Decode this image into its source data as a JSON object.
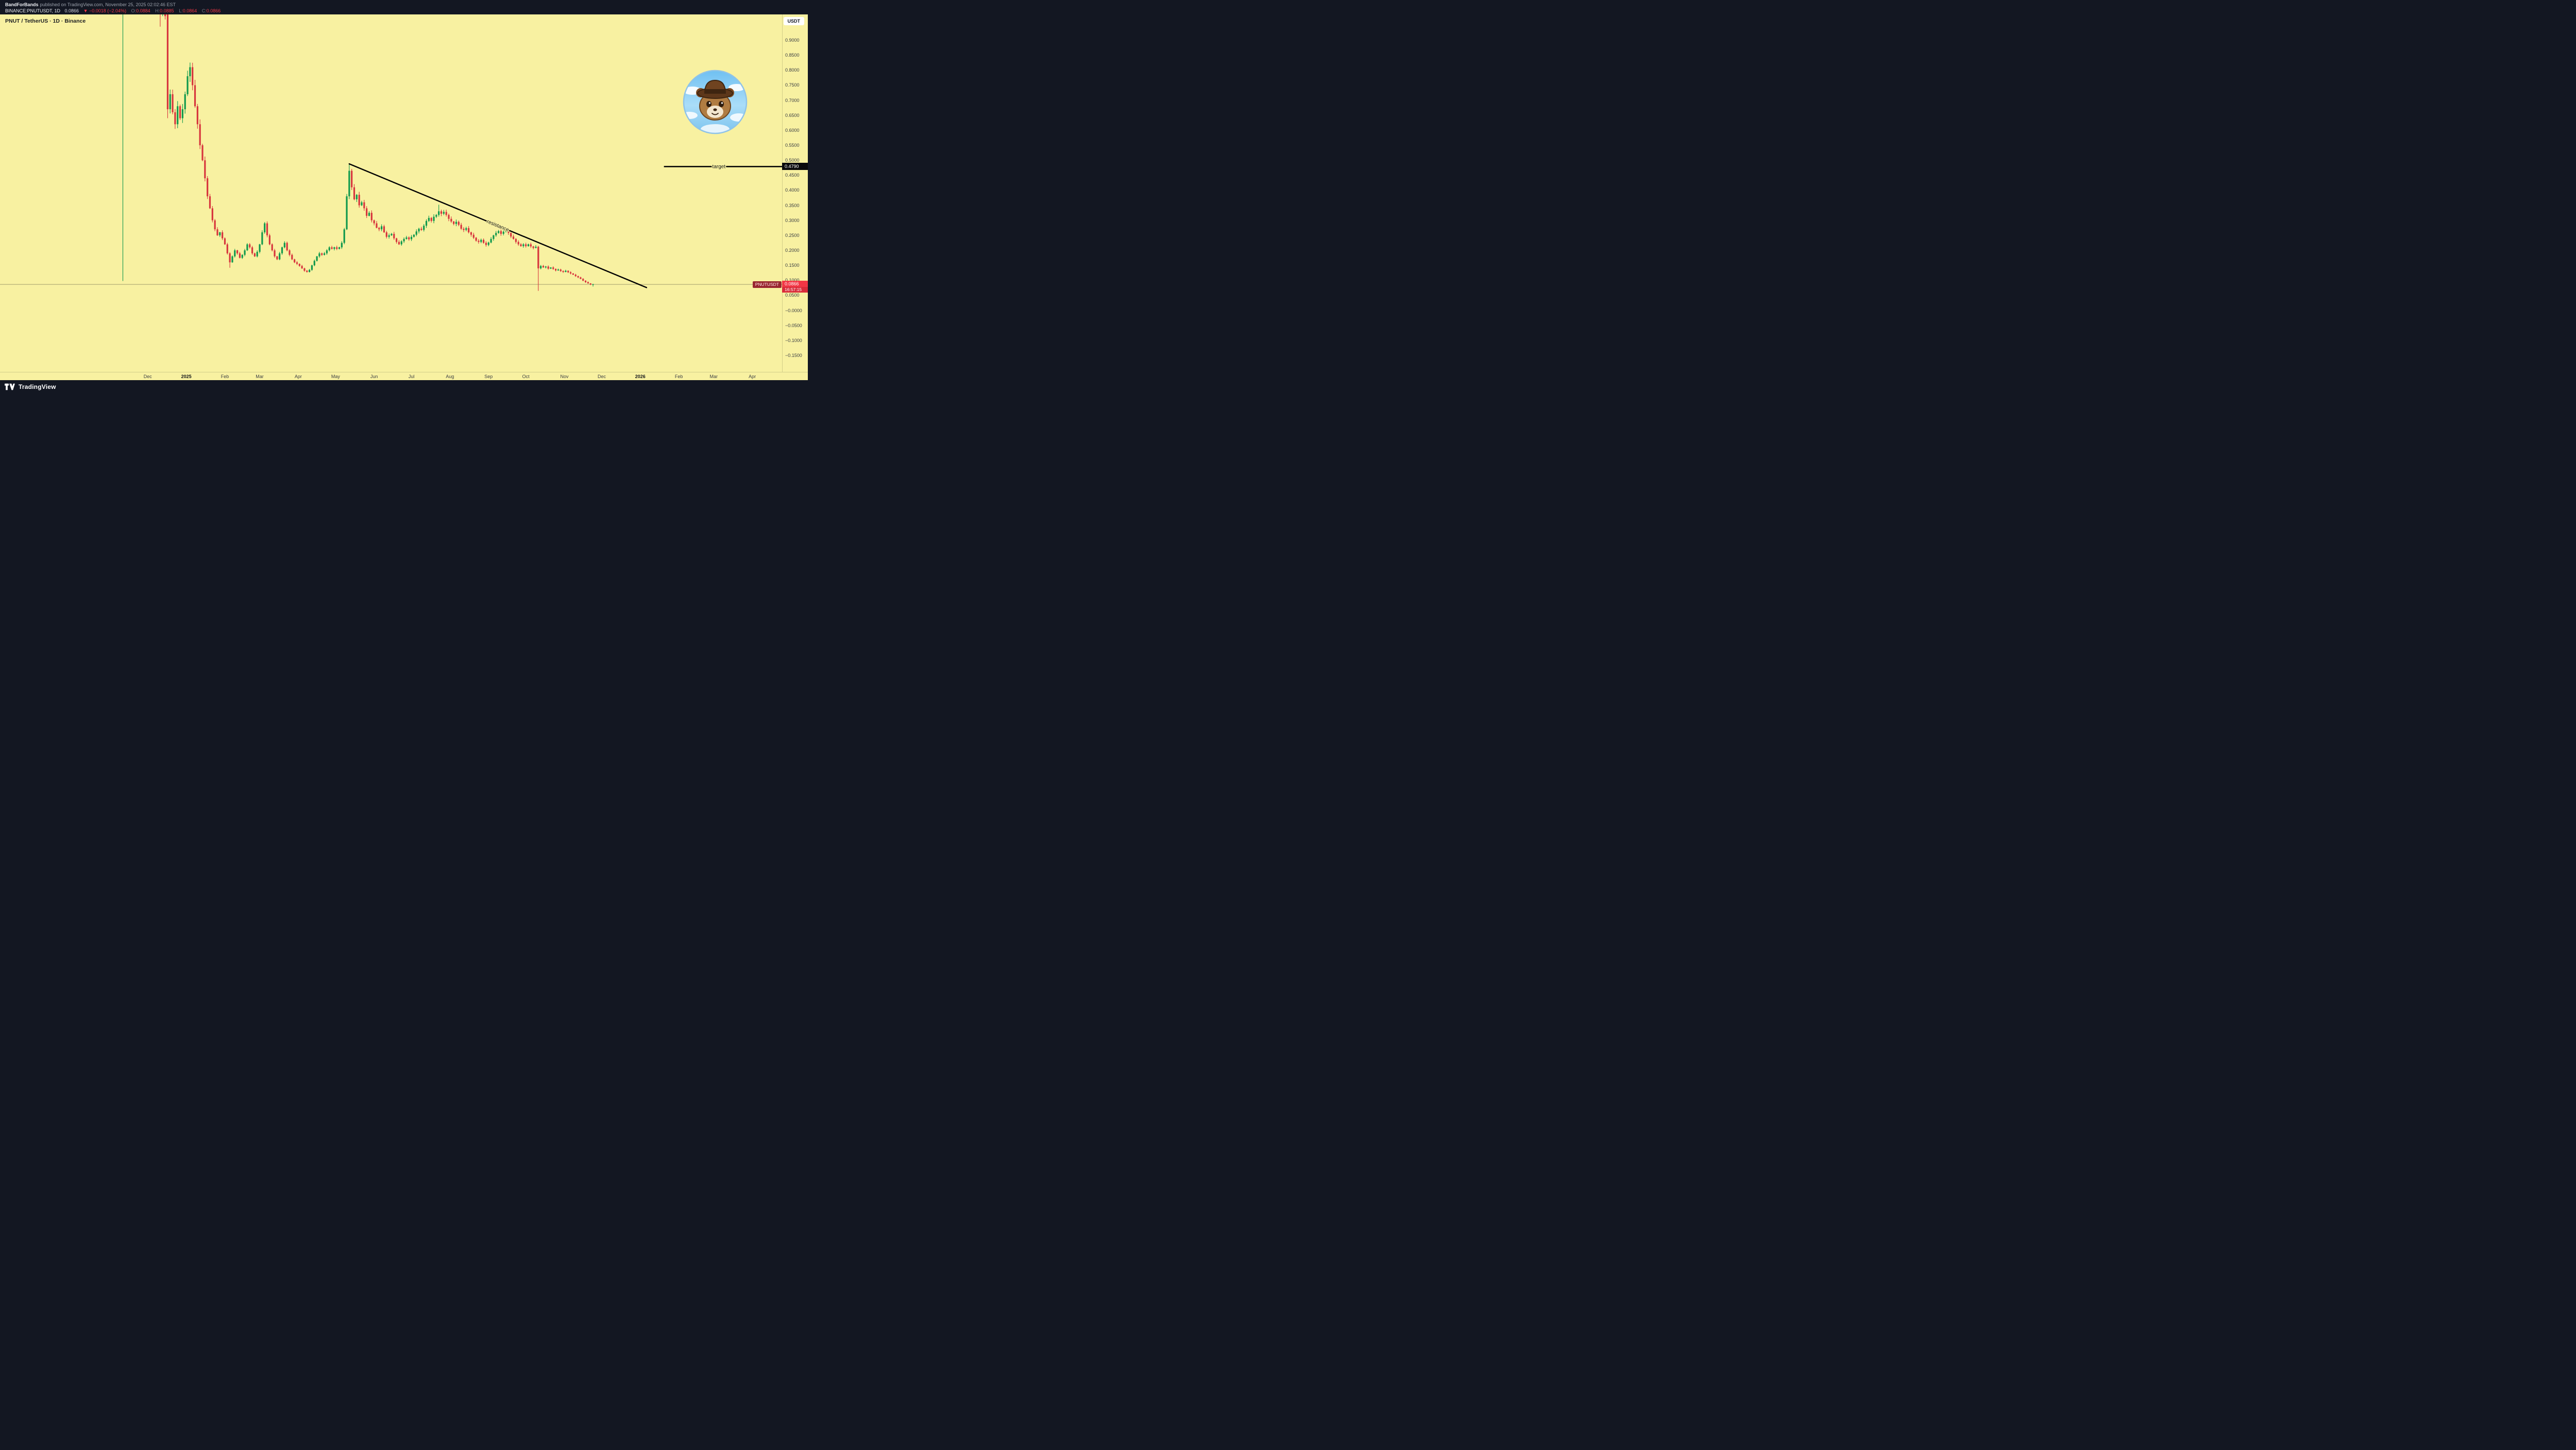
{
  "header": {
    "author": "BandForBands",
    "published": "published on TradingView.com, November 25, 2025 02:02:46 EST",
    "symbol": "BINANCE:PNUTUSDT, 1D",
    "last": "0.0866",
    "direction": "▼",
    "change": "−0.0018 (−2.04%)",
    "ohlc": [
      {
        "k": "O:",
        "v": "0.0884"
      },
      {
        "k": "H:",
        "v": "0.0885"
      },
      {
        "k": "L:",
        "v": "0.0864"
      },
      {
        "k": "C:",
        "v": "0.0866"
      }
    ]
  },
  "chart_header": {
    "title": "PNUT / TetherUS · 1D · Binance",
    "currency_button": "USDT"
  },
  "footer": {
    "brand": "TradingView"
  },
  "axis": {
    "price_ticks": [
      "0.9000",
      "0.8500",
      "0.8000",
      "0.7500",
      "0.7000",
      "0.6500",
      "0.6000",
      "0.5500",
      "0.5000",
      "0.4500",
      "0.4000",
      "0.3500",
      "0.3000",
      "0.2500",
      "0.2000",
      "0.1500",
      "0.1000",
      "0.0500",
      "−0.0000",
      "−0.0500",
      "−0.1000",
      "−0.1500"
    ],
    "time_ticks": [
      {
        "label": "Dec",
        "date": "2024-12-01",
        "bold": false
      },
      {
        "label": "2025",
        "date": "2025-01-01",
        "bold": true
      },
      {
        "label": "Feb",
        "date": "2025-02-01",
        "bold": false
      },
      {
        "label": "Mar",
        "date": "2025-03-01",
        "bold": false
      },
      {
        "label": "Apr",
        "date": "2025-04-01",
        "bold": false
      },
      {
        "label": "May",
        "date": "2025-05-01",
        "bold": false
      },
      {
        "label": "Jun",
        "date": "2025-06-01",
        "bold": false
      },
      {
        "label": "Jul",
        "date": "2025-07-01",
        "bold": false
      },
      {
        "label": "Aug",
        "date": "2025-08-01",
        "bold": false
      },
      {
        "label": "Sep",
        "date": "2025-09-01",
        "bold": false
      },
      {
        "label": "Oct",
        "date": "2025-10-01",
        "bold": false
      },
      {
        "label": "Nov",
        "date": "2025-11-01",
        "bold": false
      },
      {
        "label": "Dec",
        "date": "2025-12-01",
        "bold": false
      },
      {
        "label": "2026",
        "date": "2026-01-01",
        "bold": true
      },
      {
        "label": "Feb",
        "date": "2026-02-01",
        "bold": false
      },
      {
        "label": "Mar",
        "date": "2026-03-01",
        "bold": false
      },
      {
        "label": "Apr",
        "date": "2026-04-01",
        "bold": false
      }
    ]
  },
  "chart_data": {
    "type": "candlestick",
    "title": "PNUT / TetherUS · 1D · Binance",
    "symbol": "PNUT/USDT",
    "exchange": "Binance",
    "interval": "1D",
    "start_date": "2024-11-11",
    "step_days": 2,
    "ylim_visible": [
      -0.205,
      0.986
    ],
    "price_tick_step": 0.05,
    "colors": {
      "up": "#11994d",
      "down": "#d7353d"
    },
    "closes": [
      1.1,
      1.35,
      1.8,
      2.2,
      1.9,
      1.7,
      1.55,
      1.45,
      1.3,
      1.25,
      1.2,
      1.28,
      1.22,
      1.15,
      1.08,
      1.0,
      1.02,
      0.98,
      0.67,
      0.72,
      0.66,
      0.62,
      0.68,
      0.64,
      0.67,
      0.72,
      0.78,
      0.81,
      0.75,
      0.68,
      0.62,
      0.55,
      0.5,
      0.44,
      0.38,
      0.34,
      0.3,
      0.27,
      0.25,
      0.26,
      0.24,
      0.22,
      0.19,
      0.16,
      0.18,
      0.2,
      0.19,
      0.175,
      0.185,
      0.2,
      0.22,
      0.21,
      0.19,
      0.18,
      0.195,
      0.22,
      0.26,
      0.29,
      0.25,
      0.22,
      0.2,
      0.18,
      0.17,
      0.19,
      0.21,
      0.225,
      0.2,
      0.185,
      0.17,
      0.16,
      0.155,
      0.148,
      0.14,
      0.132,
      0.128,
      0.135,
      0.15,
      0.165,
      0.18,
      0.19,
      0.185,
      0.19,
      0.2,
      0.21,
      0.205,
      0.21,
      0.205,
      0.21,
      0.225,
      0.27,
      0.38,
      0.465,
      0.41,
      0.37,
      0.385,
      0.35,
      0.36,
      0.34,
      0.315,
      0.325,
      0.3,
      0.29,
      0.275,
      0.27,
      0.28,
      0.26,
      0.245,
      0.25,
      0.255,
      0.24,
      0.228,
      0.22,
      0.23,
      0.238,
      0.243,
      0.237,
      0.245,
      0.252,
      0.263,
      0.272,
      0.268,
      0.282,
      0.298,
      0.308,
      0.298,
      0.312,
      0.318,
      0.33,
      0.322,
      0.328,
      0.318,
      0.305,
      0.296,
      0.288,
      0.295,
      0.285,
      0.272,
      0.268,
      0.274,
      0.26,
      0.252,
      0.242,
      0.232,
      0.228,
      0.235,
      0.225,
      0.218,
      0.226,
      0.238,
      0.25,
      0.258,
      0.264,
      0.255,
      0.262,
      0.268,
      0.258,
      0.246,
      0.238,
      0.228,
      0.22,
      0.214,
      0.22,
      0.214,
      0.22,
      0.213,
      0.208,
      0.212,
      0.14,
      0.148,
      0.143,
      0.146,
      0.139,
      0.143,
      0.138,
      0.133,
      0.136,
      0.131,
      0.128,
      0.132,
      0.127,
      0.123,
      0.119,
      0.114,
      0.11,
      0.105,
      0.099,
      0.094,
      0.09,
      0.086,
      0.0866
    ],
    "overrides": {
      "0": {
        "o": 1.05,
        "h": 1.45,
        "l": 0.098
      },
      "15": {
        "l": 0.945
      },
      "18": {
        "o": 1.0,
        "h": 1.02,
        "l": 0.64
      },
      "43": {
        "l": 0.142
      },
      "91": {
        "h": 0.49
      },
      "127": {
        "h": 0.352
      },
      "167": {
        "o": 0.212,
        "h": 0.215,
        "l": 0.065
      },
      "189": {
        "l": 0.0795
      }
    },
    "annotations": {
      "resistance": {
        "label": "resistance",
        "from": {
          "date": "2025-05-12",
          "price": 0.488
        },
        "to": {
          "date": "2026-01-06",
          "price": 0.076
        },
        "color": "#000000"
      },
      "target": {
        "label": "target",
        "price": 0.479,
        "price_label": "0.4790",
        "from_date": "2026-01-20",
        "color": "#000000"
      },
      "last_price": {
        "symbol_label": "PNUTUSDT",
        "price": 0.0866,
        "price_label": "0.0866",
        "countdown": "16:57:15"
      }
    }
  }
}
